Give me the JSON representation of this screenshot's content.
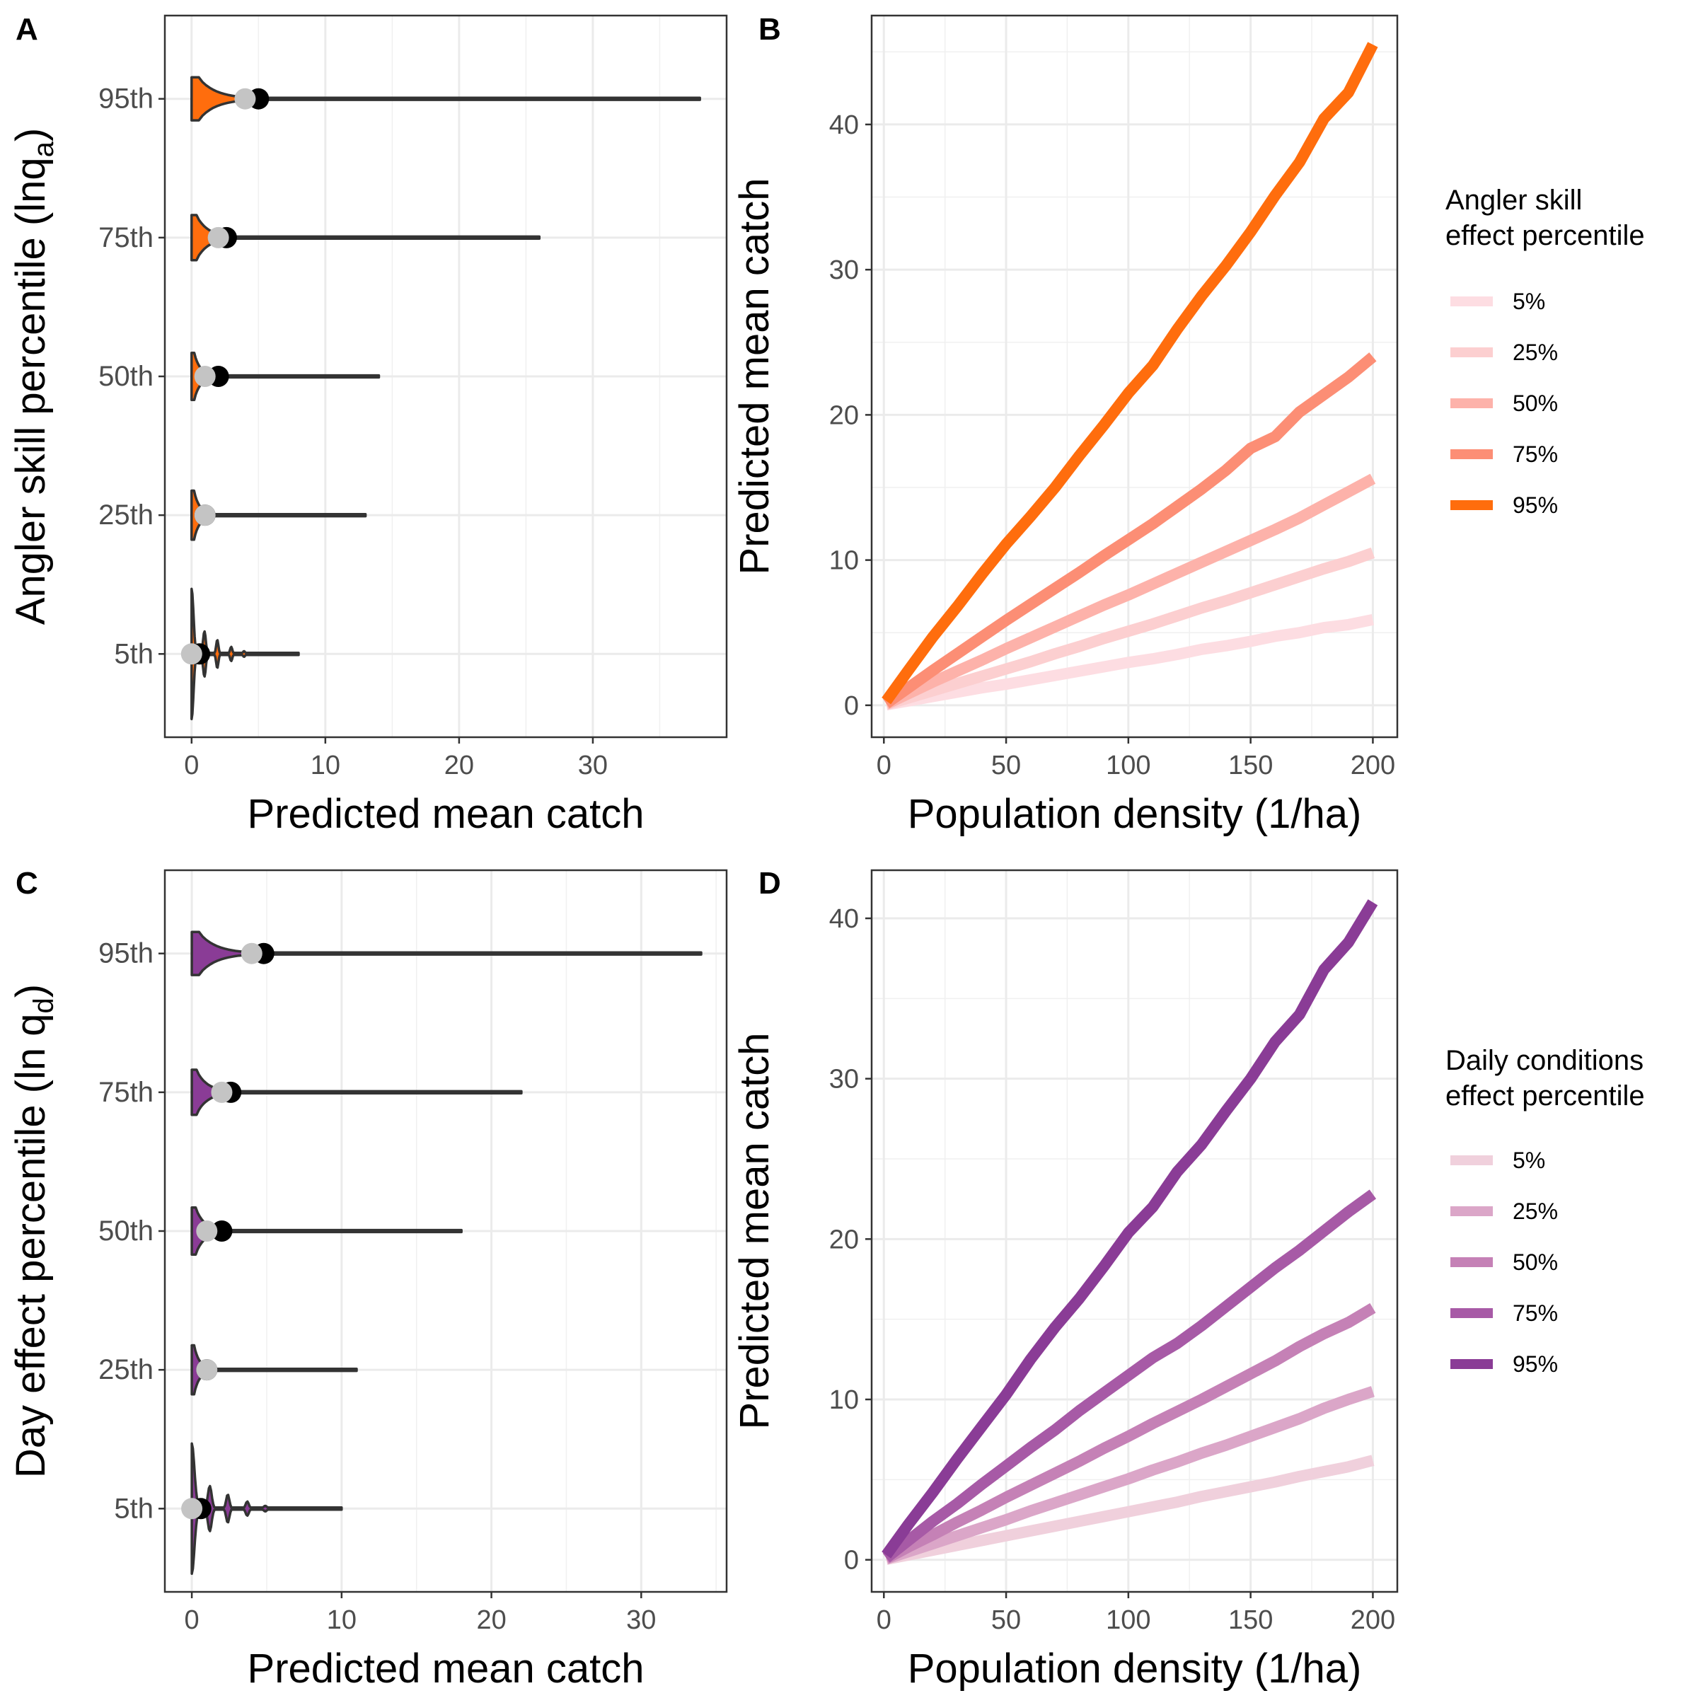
{
  "chart_data": [
    {
      "panel": "A",
      "type": "violin",
      "xlabel": "Predicted mean catch",
      "ylabel": "Angler skill percentile (lnq",
      "ylabel_sub": "a",
      "ylabel_close": ")",
      "color": "#ff6d0d",
      "xlim": [
        -2,
        40
      ],
      "x_ticks": [
        0,
        10,
        20,
        30
      ],
      "categories": [
        "5th",
        "25th",
        "50th",
        "75th",
        "95th"
      ],
      "violins": [
        {
          "category": "5th",
          "max": 8,
          "mean": 0.6,
          "median": 0
        },
        {
          "category": "25th",
          "max": 13,
          "mean": 1.0,
          "median": 1.0
        },
        {
          "category": "50th",
          "max": 14,
          "mean": 2.0,
          "median": 1.0
        },
        {
          "category": "75th",
          "max": 26,
          "mean": 2.6,
          "median": 2.0
        },
        {
          "category": "95th",
          "max": 38,
          "mean": 5.0,
          "median": 4.0
        }
      ]
    },
    {
      "panel": "B",
      "type": "line",
      "xlabel": "Population density (1/ha)",
      "ylabel": "Predicted mean catch",
      "xlim": [
        -5,
        210
      ],
      "ylim": [
        -2.2,
        47.5
      ],
      "x_ticks": [
        0,
        50,
        100,
        150,
        200
      ],
      "y_ticks": [
        0,
        10,
        20,
        30,
        40
      ],
      "legend_title": [
        "Angler skill",
        "effect percentile"
      ],
      "x": [
        1,
        10,
        20,
        30,
        40,
        50,
        60,
        70,
        80,
        90,
        100,
        110,
        120,
        130,
        140,
        150,
        160,
        170,
        180,
        190,
        200
      ],
      "series": [
        {
          "name": "5%",
          "color": "#fddde2",
          "values": [
            0.03,
            0.3,
            0.6,
            0.9,
            1.2,
            1.45,
            1.75,
            2.05,
            2.35,
            2.65,
            2.95,
            3.2,
            3.5,
            3.85,
            4.1,
            4.4,
            4.75,
            5.0,
            5.35,
            5.55,
            5.9
          ]
        },
        {
          "name": "25%",
          "color": "#fccfd0",
          "values": [
            0.05,
            0.5,
            1.0,
            1.5,
            2.0,
            2.5,
            3.0,
            3.55,
            4.05,
            4.6,
            5.1,
            5.6,
            6.15,
            6.7,
            7.2,
            7.75,
            8.3,
            8.85,
            9.4,
            9.9,
            10.5
          ]
        },
        {
          "name": "50%",
          "color": "#fdb2aa",
          "values": [
            0.08,
            0.8,
            1.6,
            2.35,
            3.1,
            3.9,
            4.65,
            5.4,
            6.15,
            6.9,
            7.6,
            8.35,
            9.1,
            9.85,
            10.6,
            11.35,
            12.1,
            12.9,
            13.8,
            14.7,
            15.6
          ]
        },
        {
          "name": "75%",
          "color": "#fc8e75",
          "values": [
            0.12,
            1.2,
            2.4,
            3.55,
            4.7,
            5.85,
            6.95,
            8.05,
            9.15,
            10.3,
            11.4,
            12.5,
            13.7,
            14.9,
            16.2,
            17.7,
            18.5,
            20.2,
            21.4,
            22.6,
            24.0
          ]
        },
        {
          "name": "95%",
          "color": "#ff6d0d",
          "values": [
            0.3,
            2.4,
            4.7,
            6.8,
            9.0,
            11.1,
            13.0,
            15.0,
            17.2,
            19.3,
            21.5,
            23.4,
            25.9,
            28.2,
            30.3,
            32.6,
            35.1,
            37.4,
            40.4,
            42.2,
            45.5
          ]
        }
      ]
    },
    {
      "panel": "C",
      "type": "violin",
      "xlabel": "Predicted mean catch",
      "ylabel": "Day effect percentile (ln q",
      "ylabel_sub": "d",
      "ylabel_close": ")",
      "color": "#8a3c96",
      "xlim": [
        -1.8,
        35.7
      ],
      "x_ticks": [
        0,
        10,
        20,
        30
      ],
      "categories": [
        "5th",
        "25th",
        "50th",
        "75th",
        "95th"
      ],
      "violins": [
        {
          "category": "5th",
          "max": 10,
          "mean": 0.6,
          "median": 0
        },
        {
          "category": "25th",
          "max": 11,
          "mean": 1.0,
          "median": 1.0
        },
        {
          "category": "50th",
          "max": 18,
          "mean": 2.0,
          "median": 1.0
        },
        {
          "category": "75th",
          "max": 22,
          "mean": 2.6,
          "median": 2.0
        },
        {
          "category": "95th",
          "max": 34,
          "mean": 4.8,
          "median": 4.0
        }
      ]
    },
    {
      "panel": "D",
      "type": "line",
      "xlabel": "Population density (1/ha)",
      "ylabel": "Predicted mean catch",
      "xlim": [
        -5,
        210
      ],
      "ylim": [
        -2.0,
        43.0
      ],
      "x_ticks": [
        0,
        50,
        100,
        150,
        200
      ],
      "y_ticks": [
        0,
        10,
        20,
        30,
        40
      ],
      "legend_title": [
        "Daily conditions",
        "effect percentile"
      ],
      "x": [
        1,
        10,
        20,
        30,
        40,
        50,
        60,
        70,
        80,
        90,
        100,
        110,
        120,
        130,
        140,
        150,
        160,
        170,
        180,
        190,
        200
      ],
      "series": [
        {
          "name": "5%",
          "color": "#f0d0dc",
          "values": [
            0.03,
            0.3,
            0.6,
            0.9,
            1.2,
            1.5,
            1.8,
            2.1,
            2.4,
            2.7,
            3.0,
            3.3,
            3.6,
            3.95,
            4.25,
            4.55,
            4.85,
            5.2,
            5.5,
            5.8,
            6.2
          ]
        },
        {
          "name": "25%",
          "color": "#dba6c8",
          "values": [
            0.05,
            0.5,
            1.0,
            1.5,
            2.0,
            2.5,
            3.05,
            3.55,
            4.05,
            4.55,
            5.05,
            5.6,
            6.1,
            6.65,
            7.15,
            7.7,
            8.25,
            8.8,
            9.45,
            10.0,
            10.5
          ]
        },
        {
          "name": "50%",
          "color": "#c581b6",
          "values": [
            0.08,
            0.8,
            1.55,
            2.35,
            3.1,
            3.9,
            4.65,
            5.4,
            6.15,
            6.95,
            7.7,
            8.5,
            9.25,
            10.0,
            10.8,
            11.6,
            12.4,
            13.3,
            14.1,
            14.8,
            15.7
          ]
        },
        {
          "name": "75%",
          "color": "#a75aa6",
          "values": [
            0.12,
            1.2,
            2.4,
            3.5,
            4.7,
            5.85,
            7.0,
            8.1,
            9.3,
            10.4,
            11.5,
            12.6,
            13.5,
            14.6,
            15.8,
            17.0,
            18.2,
            19.3,
            20.5,
            21.7,
            22.8
          ]
        },
        {
          "name": "95%",
          "color": "#8a3c96",
          "values": [
            0.3,
            2.2,
            4.2,
            6.3,
            8.3,
            10.3,
            12.5,
            14.5,
            16.3,
            18.3,
            20.4,
            22.0,
            24.2,
            25.9,
            28.0,
            30.0,
            32.3,
            34.0,
            36.8,
            38.5,
            41.0
          ]
        }
      ]
    }
  ]
}
